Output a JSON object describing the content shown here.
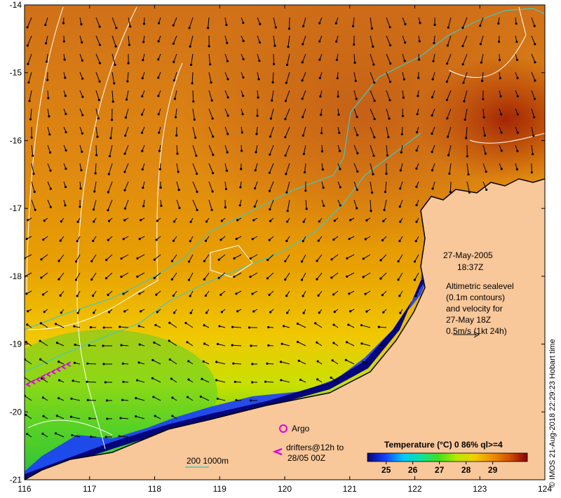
{
  "map": {
    "lon_ticks": [
      "116",
      "117",
      "118",
      "119",
      "120",
      "121",
      "122",
      "123",
      "124"
    ],
    "lat_ticks": [
      "-14",
      "-15",
      "-16",
      "-17",
      "-18",
      "-19",
      "-20",
      "-21"
    ],
    "lon_range": [
      116,
      124
    ],
    "lat_range": [
      -21,
      -14
    ]
  },
  "annotations": {
    "date": "27-May-2005",
    "time": "18:37Z",
    "altimetry_lines": [
      "Altimetric sealevel",
      "(0.1m contours)",
      "and velocity for",
      "27-May 18Z",
      "0.5m/s (1kt 24h)"
    ],
    "argo_label": "Argo",
    "drifters_line1": "drifters@12h to",
    "drifters_line2": "28/05 00Z",
    "depth_label": "200  1000m",
    "credit": "© IMOS 21-Aug-2018 22:29:23 Hobart time"
  },
  "colorbar": {
    "title": "Temperature (°C) 0 86% ql>=4",
    "ticks": [
      "25",
      "26",
      "27",
      "28",
      "29"
    ],
    "range": [
      24.3,
      30.3
    ],
    "colors": [
      "#05057a",
      "#1540ff",
      "#00c8ff",
      "#10e0a0",
      "#40e020",
      "#b8e800",
      "#f0d000",
      "#f09000",
      "#d05000",
      "#8a0000"
    ]
  },
  "colors": {
    "land": "#f8c79a",
    "coast": "#000000",
    "isobath_200": "#40c8c8",
    "contour": "#ffffff",
    "argo": "#e000e0",
    "drifter": "#e000e0"
  }
}
